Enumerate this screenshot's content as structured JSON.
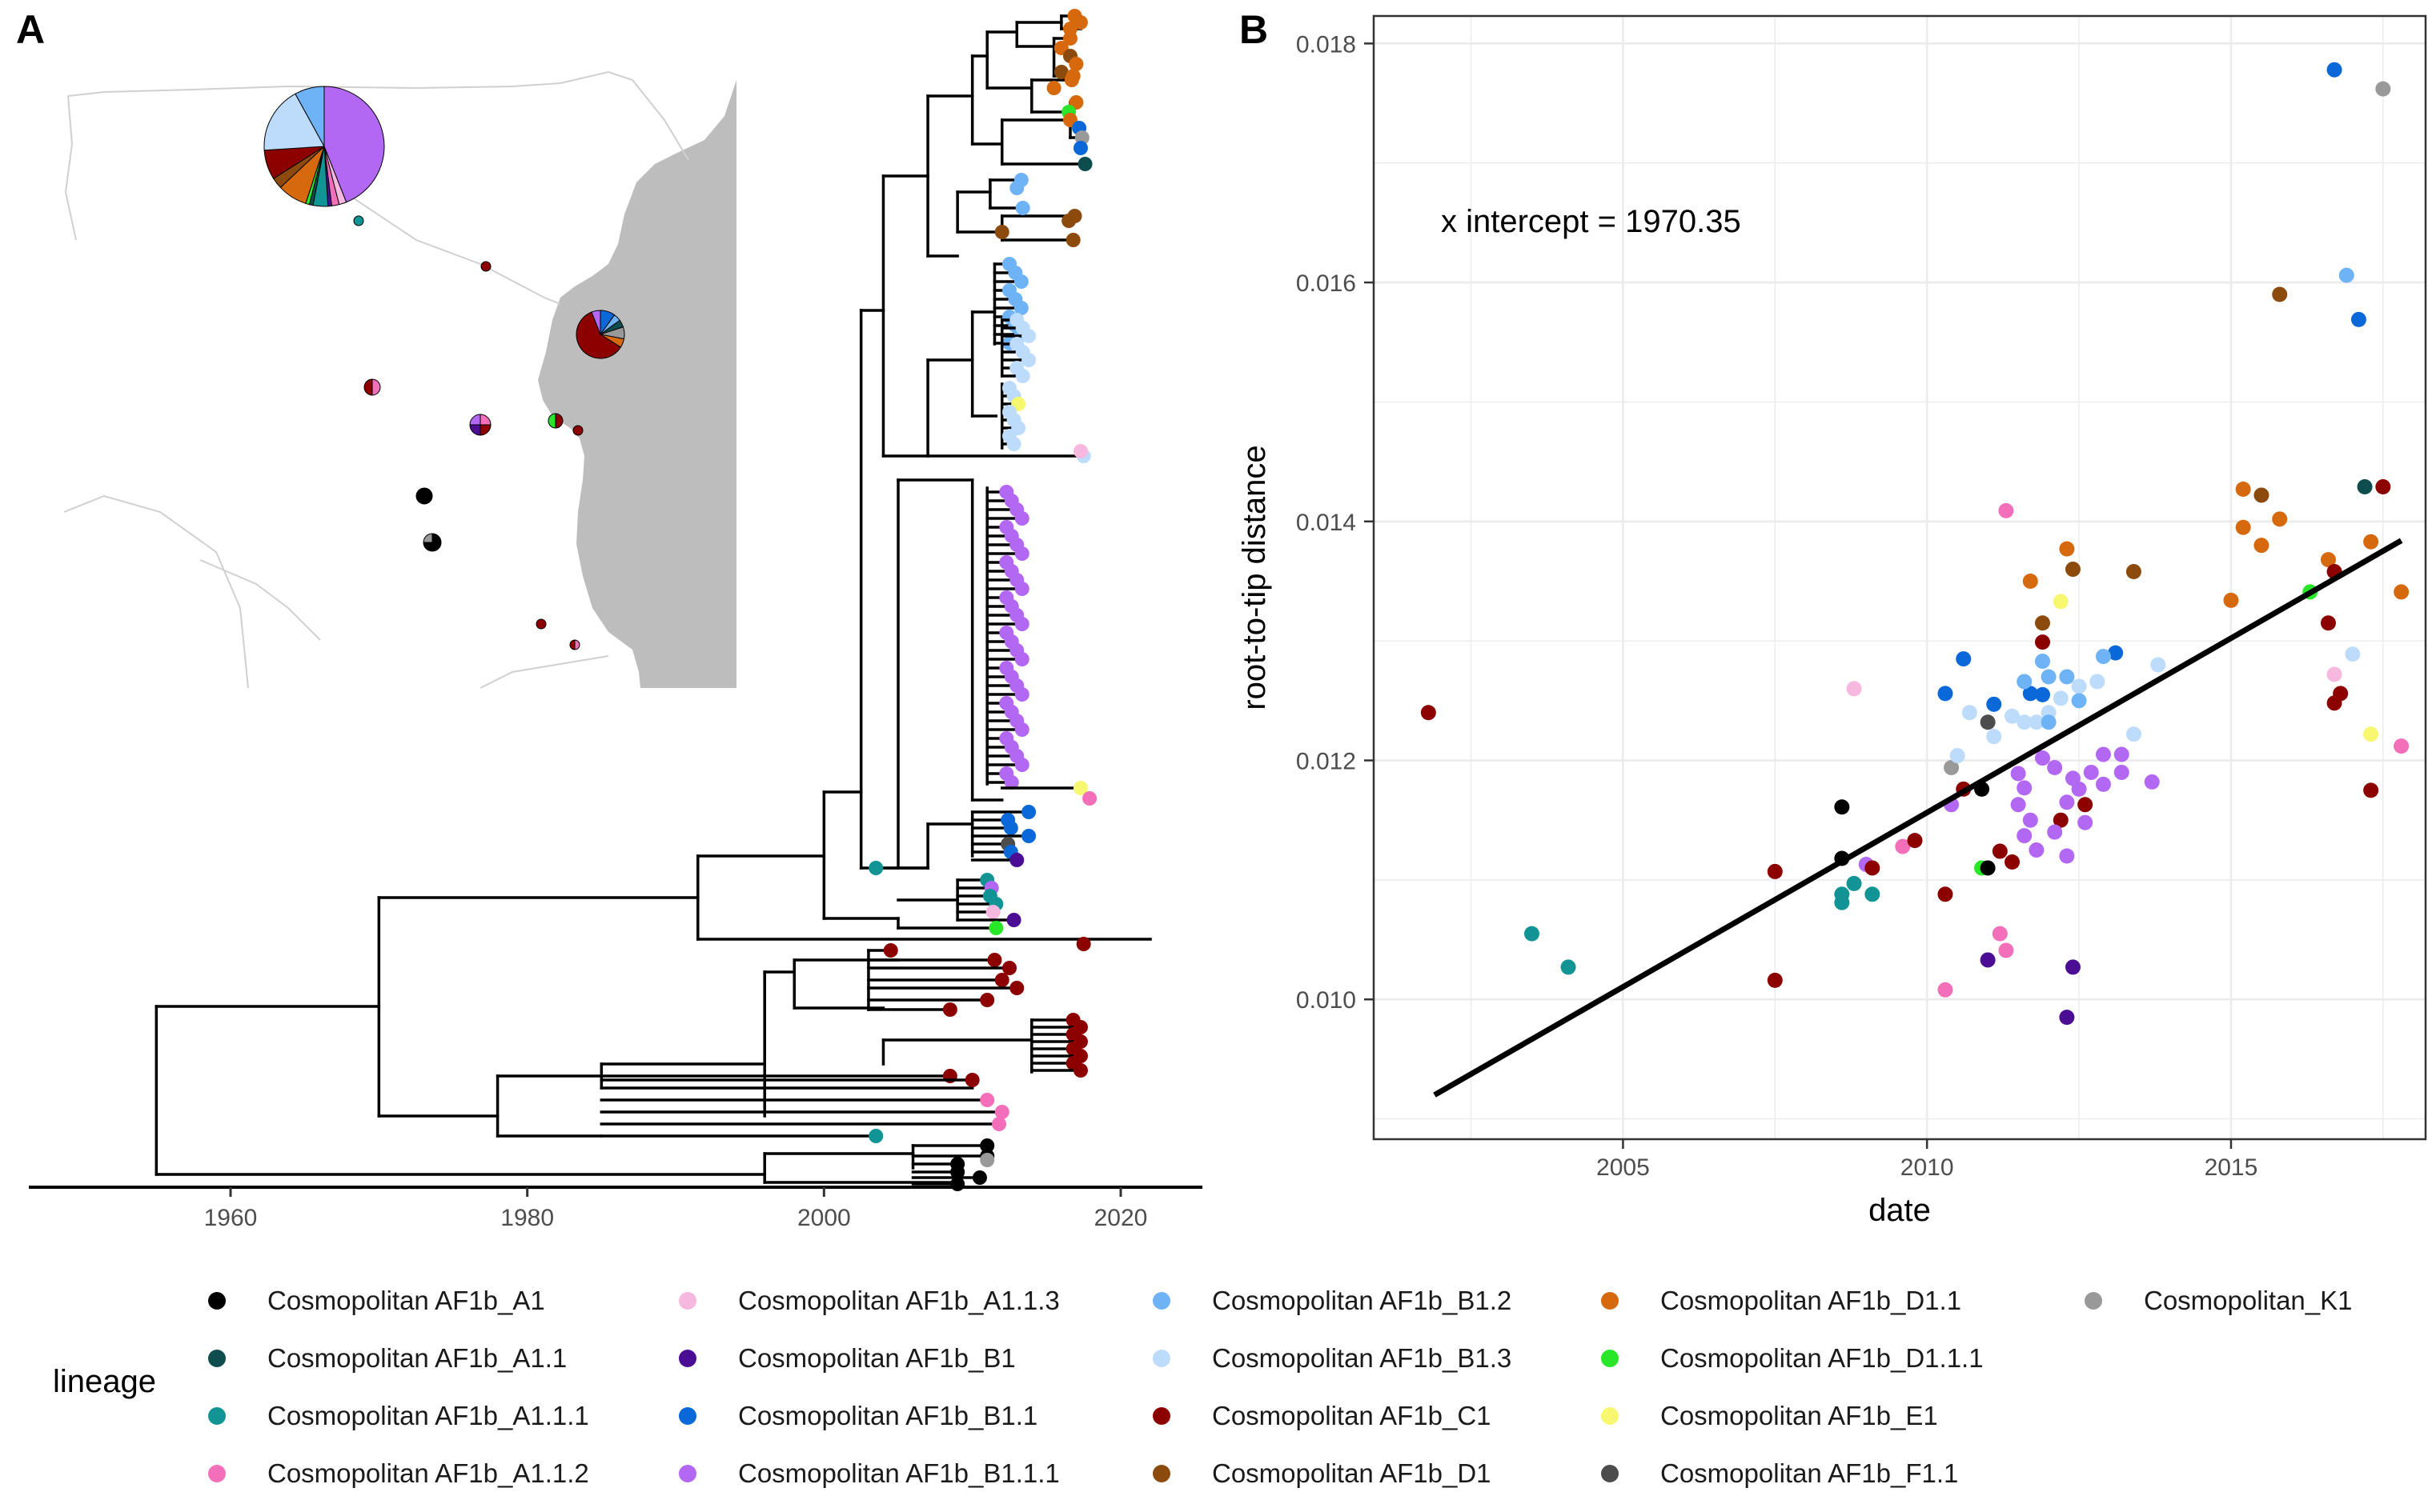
{
  "panels": {
    "a": "A",
    "b": "B"
  },
  "colors": {
    "Cosmopolitan AF1b_A1": "#000000",
    "Cosmopolitan AF1b_A1.1": "#0d4d4d",
    "Cosmopolitan AF1b_A1.1.1": "#139494",
    "Cosmopolitan AF1b_A1.1.2": "#f46fba",
    "Cosmopolitan AF1b_A1.1.3": "#f7b8df",
    "Cosmopolitan AF1b_B1": "#4b0d94",
    "Cosmopolitan AF1b_B1.1": "#0a68d8",
    "Cosmopolitan AF1b_B1.1.1": "#b268f2",
    "Cosmopolitan AF1b_B1.2": "#6fb3f7",
    "Cosmopolitan AF1b_B1.3": "#bddcfb",
    "Cosmopolitan AF1b_C1": "#8c0000",
    "Cosmopolitan AF1b_D1": "#8c4a0d",
    "Cosmopolitan AF1b_D1.1": "#d6680d",
    "Cosmopolitan AF1b_D1.1.1": "#29e629",
    "Cosmopolitan AF1b_E1": "#f7f770",
    "Cosmopolitan AF1b_F1.1": "#4d4d4d",
    "Cosmopolitan_K1": "#999999"
  },
  "legend": {
    "title": "lineage",
    "columns": [
      [
        "Cosmopolitan AF1b_A1",
        "Cosmopolitan AF1b_A1.1",
        "Cosmopolitan AF1b_A1.1.1",
        "Cosmopolitan AF1b_A1.1.2"
      ],
      [
        "Cosmopolitan AF1b_A1.1.3",
        "Cosmopolitan AF1b_B1",
        "Cosmopolitan AF1b_B1.1",
        "Cosmopolitan AF1b_B1.1.1"
      ],
      [
        "Cosmopolitan AF1b_B1.2",
        "Cosmopolitan AF1b_B1.3",
        "Cosmopolitan AF1b_C1",
        "Cosmopolitan AF1b_D1"
      ],
      [
        "Cosmopolitan AF1b_D1.1",
        "Cosmopolitan AF1b_D1.1.1",
        "Cosmopolitan AF1b_E1",
        "Cosmopolitan AF1b_F1.1"
      ],
      [
        "Cosmopolitan_K1"
      ]
    ]
  },
  "chart_data": [
    {
      "type": "tree",
      "panel": "A",
      "x_ticks": [
        1960,
        1980,
        2000,
        2020
      ],
      "xlim": [
        1947,
        2026
      ],
      "nodes": [
        {
          "t": 1955,
          "y0": 753,
          "y1": 646
        },
        {
          "t": 1970,
          "y0": 716,
          "y1": 577
        },
        {
          "t": 1991.5,
          "y0": 603,
          "y1": 550
        },
        {
          "t": 1996,
          "y0": 753,
          "y1": 742
        }
      ],
      "tips": [
        {
          "t": 2009,
          "lineage": "Cosmopolitan AF1b_A1"
        },
        {
          "t": 2010.5,
          "lineage": "Cosmopolitan AF1b_A1"
        },
        {
          "t": 2011,
          "lineage": "Cosmopolitan_K1"
        },
        {
          "t": 2003.5,
          "lineage": "Cosmopolitan AF1b_A1.1.1"
        },
        {
          "t": 2011,
          "lineage": "Cosmopolitan AF1b_A1.1.1"
        },
        {
          "t": 2011.5,
          "lineage": "Cosmopolitan AF1b_A1.1.1"
        },
        {
          "t": 2011.2,
          "lineage": "Cosmopolitan AF1b_A1.1.1"
        },
        {
          "t": 2011.6,
          "lineage": "Cosmopolitan AF1b_D1.1.1"
        },
        {
          "t": 2011.4,
          "lineage": "Cosmopolitan AF1b_A1.1.2"
        },
        {
          "t": 2012,
          "lineage": "Cosmopolitan AF1b_A1.1.2"
        },
        {
          "t": 2011.7,
          "lineage": "Cosmopolitan AF1b_A1.1.2"
        },
        {
          "t": 2012.7,
          "lineage": "Cosmopolitan AF1b_B1"
        },
        {
          "t": 2012.7,
          "lineage": "Cosmopolitan AF1b_B1"
        },
        {
          "t": 2012.5,
          "lineage": "Cosmopolitan AF1b_B1.1"
        },
        {
          "t": 2013.8,
          "lineage": "Cosmopolitan AF1b_B1.1"
        },
        {
          "t": 2012.4,
          "lineage": "Cosmopolitan AF1b_F1.1"
        },
        {
          "t": 2017.9,
          "lineage": "Cosmopolitan AF1b_A1.1.2"
        },
        {
          "t": 2017.5,
          "lineage": "Cosmopolitan AF1b_E1"
        },
        {
          "t": 2017.5,
          "lineage": "Cosmopolitan AF1b_C1"
        },
        {
          "t": 2004.5,
          "lineage": "Cosmopolitan AF1b_C1"
        },
        {
          "t": 2008.5,
          "lineage": "Cosmopolitan AF1b_C1"
        },
        {
          "t": 2012,
          "lineage": "Cosmopolitan AF1b_C1"
        },
        {
          "t": 2013,
          "lineage": "Cosmopolitan AF1b_C1"
        },
        {
          "t": 2017.2,
          "lineage": "Cosmopolitan AF1b_C1"
        },
        {
          "t": 2017.6,
          "lineage": "Cosmopolitan AF1b_C1"
        },
        {
          "t": 2010,
          "lineage": "Cosmopolitan AF1b_C1"
        },
        {
          "t": 2011,
          "lineage": "Cosmopolitan AF1b_C1"
        },
        {
          "t": 2012.5,
          "lineage": "Cosmopolitan AF1b_A1.1.2"
        },
        {
          "t": 2012.8,
          "lineage": "Cosmopolitan AF1b_A1.1.2"
        },
        {
          "t": 2012.6,
          "lineage": "Cosmopolitan AF1b_B1.1.1"
        },
        {
          "t": 2013.3,
          "lineage": "Cosmopolitan AF1b_B1.1.1"
        },
        {
          "t": 2013.2,
          "lineage": "Cosmopolitan AF1b_B1.1.1"
        },
        {
          "t": 2013.0,
          "lineage": "Cosmopolitan AF1b_B1.1.1"
        },
        {
          "t": 2012.8,
          "lineage": "Cosmopolitan AF1b_B1.2"
        },
        {
          "t": 2013.5,
          "lineage": "Cosmopolitan AF1b_B1.3"
        },
        {
          "t": 2012.6,
          "lineage": "Cosmopolitan AF1b_E1"
        },
        {
          "t": 2017.3,
          "lineage": "Cosmopolitan AF1b_B1.3"
        },
        {
          "t": 2013.1,
          "lineage": "Cosmopolitan AF1b_D1"
        },
        {
          "t": 2015.5,
          "lineage": "Cosmopolitan AF1b_D1"
        },
        {
          "t": 2015.3,
          "lineage": "Cosmopolitan AF1b_D1.1"
        },
        {
          "t": 2017.0,
          "lineage": "Cosmopolitan AF1b_D1.1"
        },
        {
          "t": 2016.6,
          "lineage": "Cosmopolitan AF1b_D1.1.1"
        },
        {
          "t": 2017.2,
          "lineage": "Cosmopolitan AF1b_B1.1"
        },
        {
          "t": 2017.6,
          "lineage": "Cosmopolitan AF1b_A1.1"
        }
      ]
    },
    {
      "type": "scatter",
      "panel": "B",
      "xlabel": "date",
      "ylabel": "root-to-tip distance",
      "annotation": "x intercept = 1970.35",
      "xlim": [
        2000.9,
        2018.2
      ],
      "ylim": [
        0.00883,
        0.01823
      ],
      "x_ticks": [
        2005,
        2010,
        2015
      ],
      "y_ticks": [
        0.01,
        0.012,
        0.014,
        0.016,
        0.018
      ],
      "y_tick_labels": [
        "0.010",
        "0.012",
        "0.014",
        "0.016",
        "0.018"
      ],
      "grid": true,
      "regression_line": {
        "x": [
          2001.9,
          2017.8
        ],
        "y": [
          0.0092,
          0.01384
        ]
      },
      "points": [
        {
          "x": 2001.8,
          "y": 0.0124,
          "lineage": "Cosmopolitan AF1b_C1"
        },
        {
          "x": 2003.5,
          "y": 0.01055,
          "lineage": "Cosmopolitan AF1b_A1.1.1"
        },
        {
          "x": 2004.1,
          "y": 0.01027,
          "lineage": "Cosmopolitan AF1b_A1.1.1"
        },
        {
          "x": 2007.5,
          "y": 0.01107,
          "lineage": "Cosmopolitan AF1b_C1"
        },
        {
          "x": 2007.5,
          "y": 0.01016,
          "lineage": "Cosmopolitan AF1b_C1"
        },
        {
          "x": 2008.6,
          "y": 0.01161,
          "lineage": "Cosmopolitan AF1b_A1"
        },
        {
          "x": 2008.6,
          "y": 0.01118,
          "lineage": "Cosmopolitan AF1b_A1"
        },
        {
          "x": 2008.6,
          "y": 0.01088,
          "lineage": "Cosmopolitan AF1b_A1.1.1"
        },
        {
          "x": 2008.6,
          "y": 0.01081,
          "lineage": "Cosmopolitan AF1b_A1.1.1"
        },
        {
          "x": 2008.8,
          "y": 0.01097,
          "lineage": "Cosmopolitan AF1b_A1.1.1"
        },
        {
          "x": 2009.0,
          "y": 0.01113,
          "lineage": "Cosmopolitan AF1b_B1.1.1"
        },
        {
          "x": 2009.1,
          "y": 0.01088,
          "lineage": "Cosmopolitan AF1b_A1.1.1"
        },
        {
          "x": 2009.1,
          "y": 0.0111,
          "lineage": "Cosmopolitan AF1b_C1"
        },
        {
          "x": 2008.8,
          "y": 0.0126,
          "lineage": "Cosmopolitan AF1b_A1.1.3"
        },
        {
          "x": 2009.6,
          "y": 0.01128,
          "lineage": "Cosmopolitan AF1b_A1.1.2"
        },
        {
          "x": 2009.8,
          "y": 0.01133,
          "lineage": "Cosmopolitan AF1b_C1"
        },
        {
          "x": 2010.3,
          "y": 0.01088,
          "lineage": "Cosmopolitan AF1b_C1"
        },
        {
          "x": 2010.3,
          "y": 0.01008,
          "lineage": "Cosmopolitan AF1b_A1.1.2"
        },
        {
          "x": 2010.3,
          "y": 0.01256,
          "lineage": "Cosmopolitan AF1b_B1.1"
        },
        {
          "x": 2010.4,
          "y": 0.01194,
          "lineage": "Cosmopolitan_K1"
        },
        {
          "x": 2010.4,
          "y": 0.01163,
          "lineage": "Cosmopolitan AF1b_B1.1.1"
        },
        {
          "x": 2010.6,
          "y": 0.01176,
          "lineage": "Cosmopolitan AF1b_C1"
        },
        {
          "x": 2010.9,
          "y": 0.01176,
          "lineage": "Cosmopolitan AF1b_A1"
        },
        {
          "x": 2010.9,
          "y": 0.0111,
          "lineage": "Cosmopolitan AF1b_D1.1.1"
        },
        {
          "x": 2011.0,
          "y": 0.0111,
          "lineage": "Cosmopolitan AF1b_A1"
        },
        {
          "x": 2011.0,
          "y": 0.01033,
          "lineage": "Cosmopolitan AF1b_B1"
        },
        {
          "x": 2011.2,
          "y": 0.01124,
          "lineage": "Cosmopolitan AF1b_C1"
        },
        {
          "x": 2011.2,
          "y": 0.01055,
          "lineage": "Cosmopolitan AF1b_A1.1.2"
        },
        {
          "x": 2011.3,
          "y": 0.01041,
          "lineage": "Cosmopolitan AF1b_A1.1.2"
        },
        {
          "x": 2011.3,
          "y": 0.01409,
          "lineage": "Cosmopolitan AF1b_A1.1.2"
        },
        {
          "x": 2011.0,
          "y": 0.01232,
          "lineage": "Cosmopolitan AF1b_F1.1"
        },
        {
          "x": 2010.6,
          "y": 0.01285,
          "lineage": "Cosmopolitan AF1b_B1.1"
        },
        {
          "x": 2011.1,
          "y": 0.01247,
          "lineage": "Cosmopolitan AF1b_B1.1"
        },
        {
          "x": 2011.4,
          "y": 0.01115,
          "lineage": "Cosmopolitan AF1b_C1"
        },
        {
          "x": 2011.7,
          "y": 0.0135,
          "lineage": "Cosmopolitan AF1b_D1.1"
        },
        {
          "x": 2011.7,
          "y": 0.01256,
          "lineage": "Cosmopolitan AF1b_B1.1"
        },
        {
          "x": 2011.9,
          "y": 0.01315,
          "lineage": "Cosmopolitan AF1b_D1"
        },
        {
          "x": 2011.9,
          "y": 0.01299,
          "lineage": "Cosmopolitan AF1b_C1"
        },
        {
          "x": 2012.2,
          "y": 0.01333,
          "lineage": "Cosmopolitan AF1b_E1"
        },
        {
          "x": 2012.3,
          "y": 0.01377,
          "lineage": "Cosmopolitan AF1b_D1.1"
        },
        {
          "x": 2012.4,
          "y": 0.0136,
          "lineage": "Cosmopolitan AF1b_D1"
        },
        {
          "x": 2012.2,
          "y": 0.0115,
          "lineage": "Cosmopolitan AF1b_C1"
        },
        {
          "x": 2012.4,
          "y": 0.01027,
          "lineage": "Cosmopolitan AF1b_B1"
        },
        {
          "x": 2012.3,
          "y": 0.00985,
          "lineage": "Cosmopolitan AF1b_B1"
        },
        {
          "x": 2012.3,
          "y": 0.0112,
          "lineage": "Cosmopolitan AF1b_B1.1.1"
        },
        {
          "x": 2012.6,
          "y": 0.01163,
          "lineage": "Cosmopolitan AF1b_C1"
        },
        {
          "x": 2013.1,
          "y": 0.0129,
          "lineage": "Cosmopolitan AF1b_B1.1"
        },
        {
          "x": 2013.4,
          "y": 0.01358,
          "lineage": "Cosmopolitan AF1b_D1"
        },
        {
          "x": 2013.4,
          "y": 0.01222,
          "lineage": "Cosmopolitan AF1b_B1.3"
        },
        {
          "x": 2013.8,
          "y": 0.0128,
          "lineage": "Cosmopolitan AF1b_B1.3"
        },
        {
          "x": 2013.7,
          "y": 0.01182,
          "lineage": "Cosmopolitan AF1b_B1.1.1"
        },
        {
          "x": 2011.5,
          "y": 0.01189,
          "lineage": "Cosmopolitan AF1b_B1.1.1"
        },
        {
          "x": 2011.6,
          "y": 0.01177,
          "lineage": "Cosmopolitan AF1b_B1.1.1"
        },
        {
          "x": 2011.5,
          "y": 0.01163,
          "lineage": "Cosmopolitan AF1b_B1.1.1"
        },
        {
          "x": 2011.7,
          "y": 0.0115,
          "lineage": "Cosmopolitan AF1b_B1.1.1"
        },
        {
          "x": 2011.6,
          "y": 0.01137,
          "lineage": "Cosmopolitan AF1b_B1.1.1"
        },
        {
          "x": 2011.8,
          "y": 0.01125,
          "lineage": "Cosmopolitan AF1b_B1.1.1"
        },
        {
          "x": 2011.9,
          "y": 0.01202,
          "lineage": "Cosmopolitan AF1b_B1.1.1"
        },
        {
          "x": 2012.1,
          "y": 0.01194,
          "lineage": "Cosmopolitan AF1b_B1.1.1"
        },
        {
          "x": 2012.4,
          "y": 0.01185,
          "lineage": "Cosmopolitan AF1b_B1.1.1"
        },
        {
          "x": 2012.5,
          "y": 0.01176,
          "lineage": "Cosmopolitan AF1b_B1.1.1"
        },
        {
          "x": 2012.3,
          "y": 0.01165,
          "lineage": "Cosmopolitan AF1b_B1.1.1"
        },
        {
          "x": 2012.7,
          "y": 0.0119,
          "lineage": "Cosmopolitan AF1b_B1.1.1"
        },
        {
          "x": 2012.9,
          "y": 0.0118,
          "lineage": "Cosmopolitan AF1b_B1.1.1"
        },
        {
          "x": 2013.2,
          "y": 0.0119,
          "lineage": "Cosmopolitan AF1b_B1.1.1"
        },
        {
          "x": 2013.2,
          "y": 0.01205,
          "lineage": "Cosmopolitan AF1b_B1.1.1"
        },
        {
          "x": 2012.9,
          "y": 0.01205,
          "lineage": "Cosmopolitan AF1b_B1.1.1"
        },
        {
          "x": 2012.1,
          "y": 0.0114,
          "lineage": "Cosmopolitan AF1b_B1.1.1"
        },
        {
          "x": 2012.6,
          "y": 0.01148,
          "lineage": "Cosmopolitan AF1b_B1.1.1"
        },
        {
          "x": 2011.4,
          "y": 0.01237,
          "lineage": "Cosmopolitan AF1b_B1.3"
        },
        {
          "x": 2011.6,
          "y": 0.01232,
          "lineage": "Cosmopolitan AF1b_B1.3"
        },
        {
          "x": 2011.8,
          "y": 0.01232,
          "lineage": "Cosmopolitan AF1b_B1.3"
        },
        {
          "x": 2012.0,
          "y": 0.0124,
          "lineage": "Cosmopolitan AF1b_B1.3"
        },
        {
          "x": 2012.2,
          "y": 0.01252,
          "lineage": "Cosmopolitan AF1b_B1.3"
        },
        {
          "x": 2012.5,
          "y": 0.01262,
          "lineage": "Cosmopolitan AF1b_B1.3"
        },
        {
          "x": 2012.8,
          "y": 0.01266,
          "lineage": "Cosmopolitan AF1b_B1.3"
        },
        {
          "x": 2010.7,
          "y": 0.0124,
          "lineage": "Cosmopolitan AF1b_B1.3"
        },
        {
          "x": 2011.1,
          "y": 0.0122,
          "lineage": "Cosmopolitan AF1b_B1.3"
        },
        {
          "x": 2010.5,
          "y": 0.01204,
          "lineage": "Cosmopolitan AF1b_B1.3"
        },
        {
          "x": 2011.6,
          "y": 0.01266,
          "lineage": "Cosmopolitan AF1b_B1.2"
        },
        {
          "x": 2012.0,
          "y": 0.0127,
          "lineage": "Cosmopolitan AF1b_B1.2"
        },
        {
          "x": 2012.3,
          "y": 0.0127,
          "lineage": "Cosmopolitan AF1b_B1.2"
        },
        {
          "x": 2012.5,
          "y": 0.0125,
          "lineage": "Cosmopolitan AF1b_B1.2"
        },
        {
          "x": 2012.0,
          "y": 0.01232,
          "lineage": "Cosmopolitan AF1b_B1.2"
        },
        {
          "x": 2011.9,
          "y": 0.01283,
          "lineage": "Cosmopolitan AF1b_B1.2"
        },
        {
          "x": 2011.9,
          "y": 0.01255,
          "lineage": "Cosmopolitan AF1b_B1.1"
        },
        {
          "x": 2012.9,
          "y": 0.01287,
          "lineage": "Cosmopolitan AF1b_B1.2"
        },
        {
          "x": 2015.0,
          "y": 0.01334,
          "lineage": "Cosmopolitan AF1b_D1.1"
        },
        {
          "x": 2015.2,
          "y": 0.01427,
          "lineage": "Cosmopolitan AF1b_D1.1"
        },
        {
          "x": 2015.2,
          "y": 0.01395,
          "lineage": "Cosmopolitan AF1b_D1.1"
        },
        {
          "x": 2015.5,
          "y": 0.0138,
          "lineage": "Cosmopolitan AF1b_D1.1"
        },
        {
          "x": 2015.5,
          "y": 0.01422,
          "lineage": "Cosmopolitan AF1b_D1"
        },
        {
          "x": 2015.8,
          "y": 0.01402,
          "lineage": "Cosmopolitan AF1b_D1.1"
        },
        {
          "x": 2015.8,
          "y": 0.0159,
          "lineage": "Cosmopolitan AF1b_D1"
        },
        {
          "x": 2016.3,
          "y": 0.01341,
          "lineage": "Cosmopolitan AF1b_D1.1.1"
        },
        {
          "x": 2016.6,
          "y": 0.01368,
          "lineage": "Cosmopolitan AF1b_D1.1"
        },
        {
          "x": 2016.7,
          "y": 0.01358,
          "lineage": "Cosmopolitan AF1b_C1"
        },
        {
          "x": 2016.6,
          "y": 0.01315,
          "lineage": "Cosmopolitan AF1b_C1"
        },
        {
          "x": 2016.7,
          "y": 0.01272,
          "lineage": "Cosmopolitan AF1b_A1.1.3"
        },
        {
          "x": 2016.8,
          "y": 0.01256,
          "lineage": "Cosmopolitan AF1b_C1"
        },
        {
          "x": 2016.7,
          "y": 0.01248,
          "lineage": "Cosmopolitan AF1b_C1"
        },
        {
          "x": 2016.7,
          "y": 0.01778,
          "lineage": "Cosmopolitan AF1b_B1.1"
        },
        {
          "x": 2016.9,
          "y": 0.01606,
          "lineage": "Cosmopolitan AF1b_B1.2"
        },
        {
          "x": 2017.0,
          "y": 0.01289,
          "lineage": "Cosmopolitan AF1b_B1.3"
        },
        {
          "x": 2017.1,
          "y": 0.01569,
          "lineage": "Cosmopolitan AF1b_B1.1"
        },
        {
          "x": 2017.2,
          "y": 0.01429,
          "lineage": "Cosmopolitan AF1b_A1.1"
        },
        {
          "x": 2017.3,
          "y": 0.01383,
          "lineage": "Cosmopolitan AF1b_D1.1"
        },
        {
          "x": 2017.3,
          "y": 0.01222,
          "lineage": "Cosmopolitan AF1b_E1"
        },
        {
          "x": 2017.3,
          "y": 0.01175,
          "lineage": "Cosmopolitan AF1b_C1"
        },
        {
          "x": 2017.5,
          "y": 0.01429,
          "lineage": "Cosmopolitan AF1b_C1"
        },
        {
          "x": 2017.5,
          "y": 0.01762,
          "lineage": "Cosmopolitan_K1"
        },
        {
          "x": 2017.8,
          "y": 0.01341,
          "lineage": "Cosmopolitan AF1b_D1.1"
        },
        {
          "x": 2017.8,
          "y": 0.01212,
          "lineage": "Cosmopolitan AF1b_A1.1.2"
        }
      ]
    }
  ]
}
